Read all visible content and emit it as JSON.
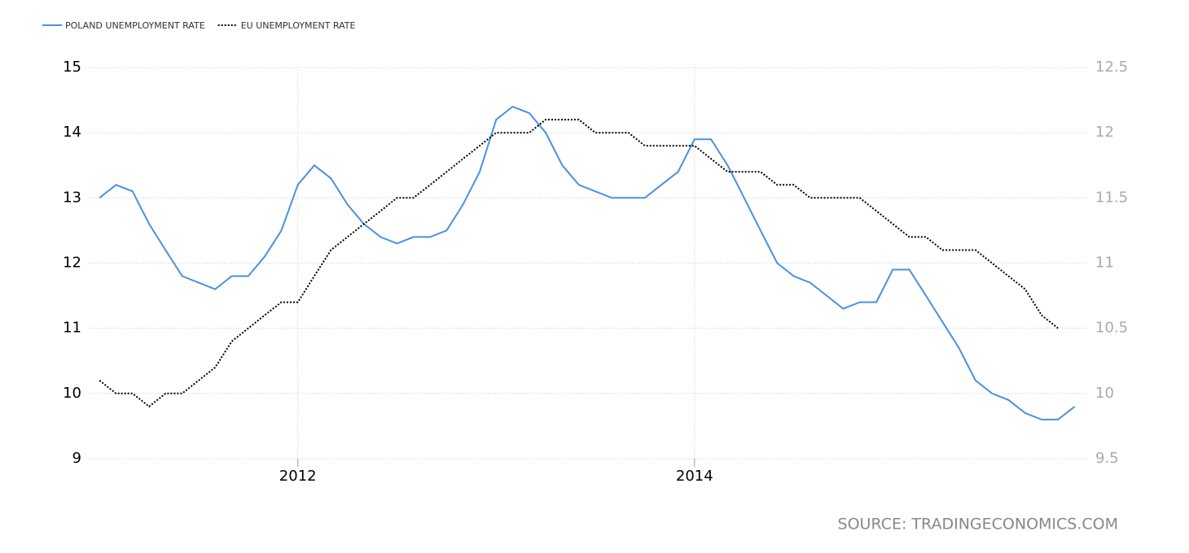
{
  "chart_data": {
    "type": "line",
    "source": "SOURCE: TRADINGECONOMICS.COM",
    "x": [
      2011,
      2011.083,
      2011.167,
      2011.25,
      2011.333,
      2011.417,
      2011.5,
      2011.583,
      2011.667,
      2011.75,
      2011.833,
      2011.917,
      2012,
      2012.083,
      2012.167,
      2012.25,
      2012.333,
      2012.417,
      2012.5,
      2012.583,
      2012.667,
      2012.75,
      2012.833,
      2012.917,
      2013,
      2013.083,
      2013.167,
      2013.25,
      2013.333,
      2013.417,
      2013.5,
      2013.583,
      2013.667,
      2013.75,
      2013.833,
      2013.917,
      2014,
      2014.083,
      2014.167,
      2014.25,
      2014.333,
      2014.417,
      2014.5,
      2014.583,
      2014.667,
      2014.75,
      2014.833,
      2014.917,
      2015,
      2015.083,
      2015.167,
      2015.25,
      2015.333,
      2015.417,
      2015.5,
      2015.583,
      2015.667,
      2015.75,
      2015.833,
      2015.917
    ],
    "series": [
      {
        "name": "POLAND UNEMPLOYMENT RATE",
        "color": "#4a90e2",
        "style": "solid",
        "values": [
          13.0,
          13.2,
          13.1,
          12.6,
          12.2,
          11.8,
          11.7,
          11.6,
          11.8,
          11.8,
          12.1,
          12.5,
          13.2,
          13.5,
          13.3,
          12.9,
          12.6,
          12.4,
          12.3,
          12.4,
          12.4,
          12.5,
          12.9,
          13.4,
          14.2,
          14.4,
          14.3,
          14.0,
          13.5,
          13.2,
          13.1,
          13.0,
          13.0,
          13.0,
          13.2,
          13.4,
          13.9,
          13.9,
          13.5,
          13.0,
          12.5,
          12.0,
          11.8,
          11.7,
          11.5,
          11.3,
          11.4,
          11.4,
          11.9,
          11.9,
          11.5,
          11.1,
          10.7,
          10.2,
          10.0,
          9.9,
          9.7,
          9.6,
          9.6,
          9.8
        ]
      },
      {
        "name": "EU UNEMPLOYMENT RATE",
        "color": "#000000",
        "style": "dotted",
        "axis": "y2",
        "values": [
          10.1,
          10.0,
          10.0,
          9.9,
          10.0,
          10.0,
          10.1,
          10.2,
          10.4,
          10.5,
          10.6,
          10.7,
          10.7,
          10.9,
          11.1,
          11.2,
          11.3,
          11.4,
          11.5,
          11.5,
          11.6,
          11.7,
          11.8,
          11.9,
          12.0,
          12.0,
          12.0,
          12.1,
          12.1,
          12.1,
          12.0,
          12.0,
          12.0,
          11.9,
          11.9,
          11.9,
          11.9,
          11.8,
          11.7,
          11.7,
          11.7,
          11.6,
          11.6,
          11.5,
          11.5,
          11.5,
          11.5,
          11.4,
          11.3,
          11.2,
          11.2,
          11.1,
          11.1,
          11.1,
          11.0,
          10.9,
          10.8,
          10.6,
          10.5,
          null
        ]
      }
    ],
    "xlim": [
      2010.95,
      2015.98
    ],
    "xticks": [
      2012,
      2014
    ],
    "ylim": [
      9,
      15
    ],
    "yticks": [
      9,
      10,
      11,
      12,
      13,
      14,
      15
    ],
    "y2lim": [
      9.5,
      12.5
    ],
    "y2ticks": [
      9.5,
      10,
      10.5,
      11,
      11.5,
      12,
      12.5
    ],
    "grid": true,
    "legend": "top-left"
  }
}
